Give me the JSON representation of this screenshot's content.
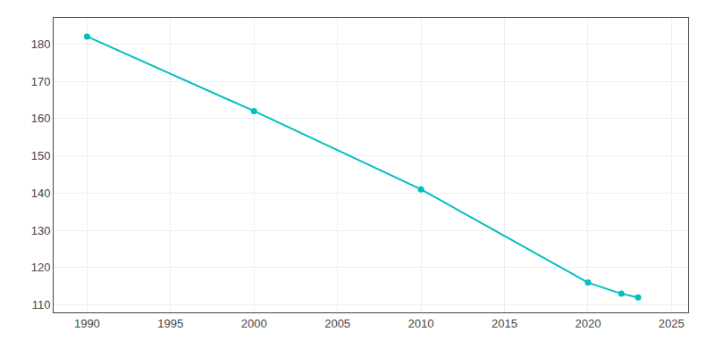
{
  "chart_data": {
    "type": "line",
    "x": [
      1990,
      2000,
      2010,
      2020,
      2022,
      2023
    ],
    "values": [
      182,
      162,
      141,
      116,
      113,
      112
    ],
    "color": "#00BFBF",
    "marker": "circle",
    "xlim": [
      1988,
      2026
    ],
    "ylim": [
      108,
      187
    ],
    "xticks": [
      1990,
      1995,
      2000,
      2005,
      2010,
      2015,
      2020,
      2025
    ],
    "yticks": [
      110,
      120,
      130,
      140,
      150,
      160,
      170,
      180
    ],
    "grid": true
  }
}
